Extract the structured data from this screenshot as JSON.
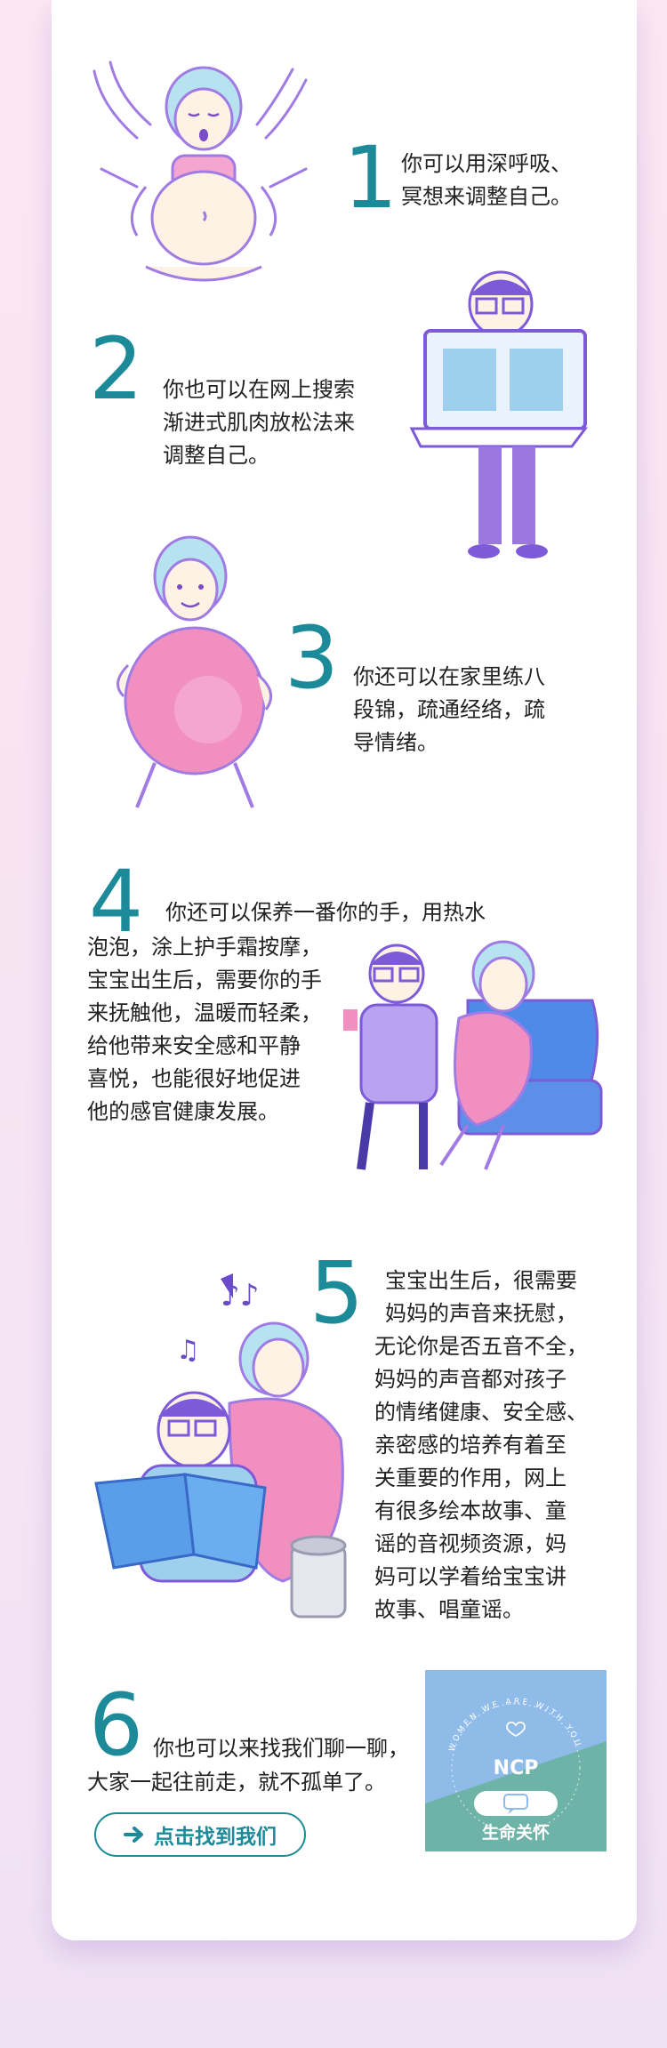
{
  "steps": [
    {
      "num": "1",
      "text_lines": [
        "你可以用深呼吸、",
        "冥想来调整自己。"
      ]
    },
    {
      "num": "2",
      "text_lines": [
        "你也可以在网上搜索",
        "渐进式肌肉放松法来",
        "调整自己。"
      ]
    },
    {
      "num": "3",
      "text_lines": [
        "你还可以在家里练八",
        "段锦，疏通经络，疏",
        "导情绪。"
      ]
    },
    {
      "num": "4",
      "text_lines": [
        "你还可以保养一番你的手，用热水",
        "泡泡，涂上护手霜按摩，",
        "宝宝出生后，需要你的手",
        "来抚触他，温暖而轻柔，",
        "给他带来安全感和平静",
        "喜悦，也能很好地促进",
        "他的感官健康发展。"
      ]
    },
    {
      "num": "5",
      "text_lines": [
        "宝宝出生后，很需要",
        "妈妈的声音来抚慰，",
        "无论你是否五音不全，",
        "妈妈的声音都对孩子",
        "的情绪健康、安全感、",
        "亲密感的培养有着至",
        "关重要的作用，网上",
        "有很多绘本故事、童",
        "谣的音视频资源，妈",
        "妈可以学着给宝宝讲",
        "故事、唱童谣。"
      ]
    },
    {
      "num": "6",
      "text_lines": [
        "你也可以来找我们聊一聊，",
        "大家一起往前走，就不孤单了。"
      ]
    }
  ],
  "cta": {
    "label": "点击找到我们",
    "icon": "arrow-right-icon"
  },
  "badge": {
    "arc_text": "WOMEN WE ARE WITH YOU",
    "title": "NCP",
    "subtitle": "生命关怀",
    "icon": "chat-heart-icon"
  },
  "colors": {
    "accent": "#1c8a98",
    "badge_blue": "#8fbbe8",
    "badge_teal": "#6eb3a7",
    "pink": "#f08fc0",
    "purple": "#9a78e0"
  }
}
